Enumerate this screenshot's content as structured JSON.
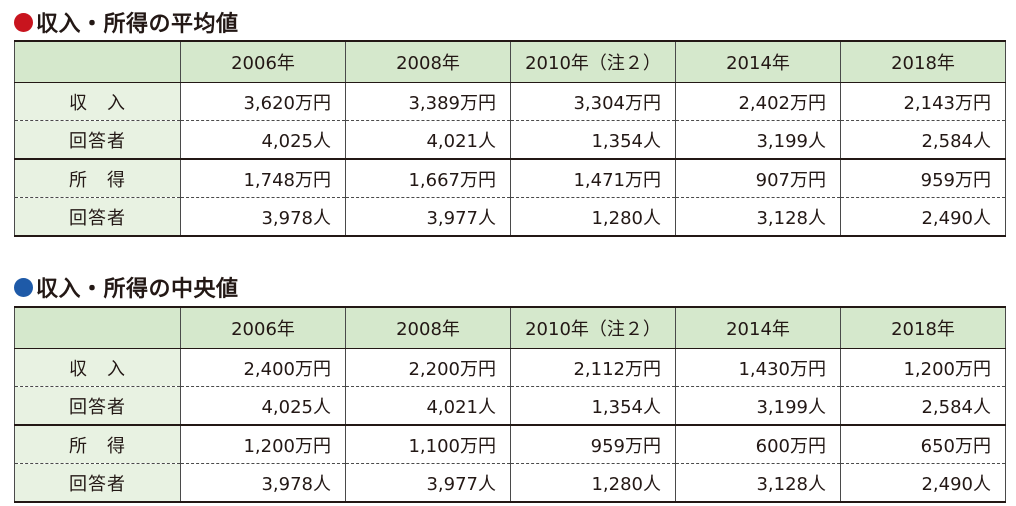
{
  "sections": [
    {
      "title": "収入・所得の平均値",
      "dot_color": "#c8141e",
      "years": [
        "2006年",
        "2008年",
        "2010年（注２）",
        "2014年",
        "2018年"
      ],
      "rows": [
        {
          "label": "収　入",
          "values": [
            "3,620万円",
            "3,389万円",
            "3,304万円",
            "2,402万円",
            "2,143万円"
          ]
        },
        {
          "label": "回答者",
          "values": [
            "4,025人",
            "4,021人",
            "1,354人",
            "3,199人",
            "2,584人"
          ]
        },
        {
          "label": "所　得",
          "values": [
            "1,748万円",
            "1,667万円",
            "1,471万円",
            "907万円",
            "959万円"
          ]
        },
        {
          "label": "回答者",
          "values": [
            "3,978人",
            "3,977人",
            "1,280人",
            "3,128人",
            "2,490人"
          ]
        }
      ]
    },
    {
      "title": "収入・所得の中央値",
      "dot_color": "#1e5aa8",
      "years": [
        "2006年",
        "2008年",
        "2010年（注２）",
        "2014年",
        "2018年"
      ],
      "rows": [
        {
          "label": "収　入",
          "values": [
            "2,400万円",
            "2,200万円",
            "2,112万円",
            "1,430万円",
            "1,200万円"
          ]
        },
        {
          "label": "回答者",
          "values": [
            "4,025人",
            "4,021人",
            "1,354人",
            "3,199人",
            "2,584人"
          ]
        },
        {
          "label": "所　得",
          "values": [
            "1,200万円",
            "1,100万円",
            "959万円",
            "600万円",
            "650万円"
          ]
        },
        {
          "label": "回答者",
          "values": [
            "3,978人",
            "3,977人",
            "1,280人",
            "3,128人",
            "2,490人"
          ]
        }
      ]
    }
  ]
}
